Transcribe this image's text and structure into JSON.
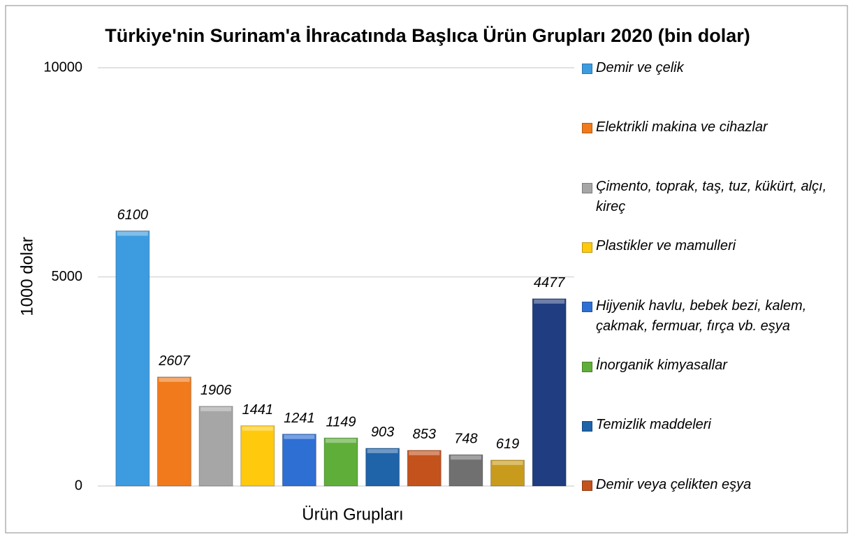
{
  "chart_data": {
    "type": "bar",
    "title": "Türkiye'nin Surinam'a İhracatında Başlıca Ürün Grupları 2020 (bin dolar)",
    "x_label": "Ürün Grupları",
    "y_label": "1000 dolar",
    "categories": [
      "Demir ve çelik",
      "Elektrikli makina ve cihazlar",
      "Çimento, toprak, taş, tuz, kükürt, alçı, kireç",
      "Plastikler ve mamulleri",
      "Hijyenik havlu, bebek bezi, kalem, çakmak, fermuar, fırça vb. eşya",
      "İnorganik kimyasallar",
      "Temizlik maddeleri",
      "Demir veya çelikten eşya",
      null,
      null,
      null
    ],
    "values": [
      6100,
      2607,
      1906,
      1441,
      1241,
      1149,
      903,
      853,
      748,
      619,
      4477
    ],
    "colors": [
      "#3d9be0",
      "#f07a1c",
      "#a6a6a6",
      "#ffc90e",
      "#2e6fd4",
      "#5fae3a",
      "#1f63a8",
      "#c3521c",
      "#707070",
      "#c99b1c",
      "#1f3d80"
    ],
    "ylim": [
      0,
      10000
    ],
    "yticks": [
      0,
      5000,
      10000
    ],
    "grid": true,
    "legend": "right"
  }
}
